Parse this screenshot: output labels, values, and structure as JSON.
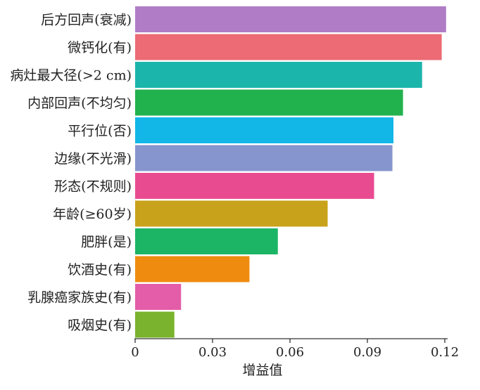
{
  "chart_data": {
    "type": "bar",
    "orientation": "horizontal",
    "title": "",
    "xlabel": "增益值",
    "ylabel": "",
    "xlim": [
      0,
      0.12
    ],
    "xticks": [
      "0",
      "0.03",
      "0.06",
      "0.09",
      "0.12"
    ],
    "xtick_values": [
      0,
      0.03,
      0.06,
      0.09,
      0.12
    ],
    "grid": false,
    "legend": "none",
    "categories": [
      "后方回声(衰减)",
      "微钙化(有)",
      "病灶最大径(>2 cm)",
      "内部回声(不均匀)",
      "平行位(否)",
      "边缘(不光滑)",
      "形态(不规则)",
      "年龄(≥60岁)",
      "肥胖(是)",
      "饮酒史(有)",
      "乳腺癌家族史(有)",
      "吸烟史(有)"
    ],
    "values": [
      0.1205,
      0.1188,
      0.1112,
      0.1038,
      0.1001,
      0.0997,
      0.0926,
      0.0746,
      0.0553,
      0.0443,
      0.0178,
      0.0152
    ],
    "colors": [
      "#b07cc6",
      "#ec6b74",
      "#1bb5ab",
      "#21b24e",
      "#12b7e8",
      "#8695cd",
      "#e94b91",
      "#c9a21c",
      "#1cb465",
      "#ef8c10",
      "#e35da8",
      "#7ab32d"
    ]
  }
}
